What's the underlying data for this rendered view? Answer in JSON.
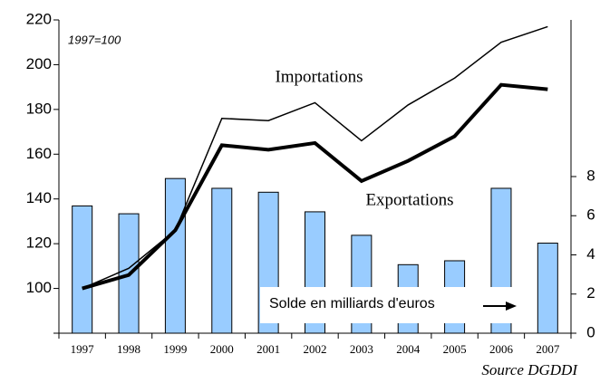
{
  "chart_data": {
    "type": "bar-line",
    "annotation": "1997=100",
    "source": "Source DGDDI",
    "categories": [
      "1997",
      "1998",
      "1999",
      "2000",
      "2001",
      "2002",
      "2003",
      "2004",
      "2005",
      "2006",
      "2007"
    ],
    "series": [
      {
        "name": "Solde en milliards d'euros",
        "type": "bar",
        "axis": "y2",
        "color": "#99ccff",
        "values": [
          6.5,
          6.1,
          7.9,
          7.4,
          7.2,
          6.2,
          5.0,
          3.5,
          3.7,
          7.4,
          4.6
        ]
      },
      {
        "name": "Importations",
        "type": "line",
        "color": "#000000",
        "width": 1.5,
        "values": [
          100,
          109,
          126,
          176,
          175,
          183,
          166,
          182,
          194,
          210,
          217
        ]
      },
      {
        "name": "Exportations",
        "type": "line",
        "color": "#000000",
        "width": 4,
        "values": [
          100,
          106,
          126,
          164,
          162,
          165,
          148,
          157,
          168,
          191,
          189
        ]
      }
    ],
    "ylim": [
      80,
      220
    ],
    "yticks": [
      100,
      120,
      140,
      160,
      180,
      200,
      220
    ],
    "y2lim": [
      0,
      16
    ],
    "y2ticks": [
      0,
      2,
      4,
      6,
      8
    ]
  }
}
